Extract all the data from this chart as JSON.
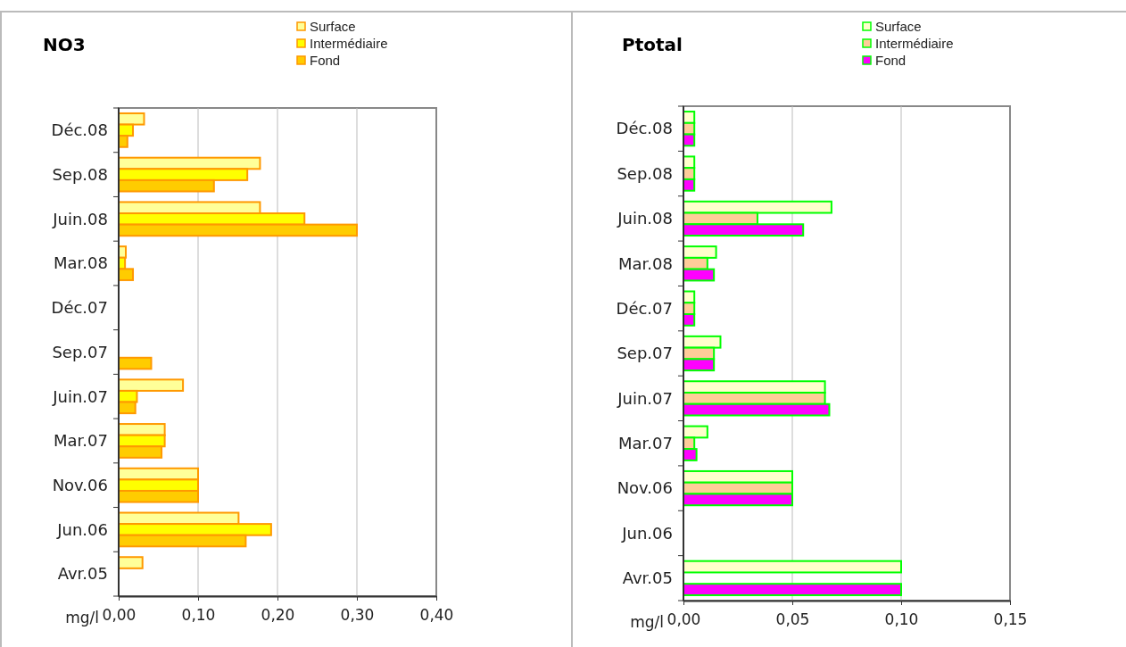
{
  "chart_data": [
    {
      "type": "bar",
      "orientation": "horizontal",
      "title": "NO3",
      "xlabel": "mg/l",
      "categories": [
        "Déc.08",
        "Sep.08",
        "Juin.08",
        "Mar.08",
        "Déc.07",
        "Sep.07",
        "Juin.07",
        "Mar.07",
        "Nov.06",
        "Jun.06",
        "Avr.05"
      ],
      "xlim": [
        0,
        0.4
      ],
      "xticks": [
        {
          "value": 0,
          "label": "0,00"
        },
        {
          "value": 0.1,
          "label": "0,10"
        },
        {
          "value": 0.2,
          "label": "0,20"
        },
        {
          "value": 0.3,
          "label": "0,30"
        },
        {
          "value": 0.4,
          "label": "0,40"
        }
      ],
      "grid": "x",
      "legend": "top",
      "series": [
        {
          "name": "Surface",
          "color": "#ffff99",
          "values": [
            0.032,
            0.178,
            0.178,
            0.009,
            null,
            null,
            0.081,
            0.058,
            0.1,
            0.151,
            0.03
          ]
        },
        {
          "name": "Intermédiaire",
          "color": "#ffff00",
          "values": [
            0.018,
            0.162,
            0.234,
            0.008,
            null,
            null,
            0.023,
            0.058,
            0.1,
            0.192,
            null
          ]
        },
        {
          "name": "Fond",
          "color": "#ffcc00",
          "values": [
            0.011,
            0.12,
            0.3,
            0.018,
            null,
            0.041,
            0.021,
            0.054,
            0.1,
            0.16,
            null
          ]
        }
      ]
    },
    {
      "type": "bar",
      "orientation": "horizontal",
      "title": "Ptotal",
      "xlabel": "mg/l",
      "categories": [
        "Déc.08",
        "Sep.08",
        "Juin.08",
        "Mar.08",
        "Déc.07",
        "Sep.07",
        "Juin.07",
        "Mar.07",
        "Nov.06",
        "Jun.06",
        "Avr.05"
      ],
      "xlim": [
        0,
        0.15
      ],
      "xticks": [
        {
          "value": 0,
          "label": "0,00"
        },
        {
          "value": 0.05,
          "label": "0,05"
        },
        {
          "value": 0.1,
          "label": "0,10"
        },
        {
          "value": 0.15,
          "label": "0,15"
        }
      ],
      "grid": "x",
      "legend": "top",
      "series": [
        {
          "name": "Surface",
          "color": "#ffffcc",
          "values": [
            0.005,
            0.005,
            0.068,
            0.015,
            0.005,
            0.017,
            0.065,
            0.011,
            0.05,
            null,
            0.1
          ]
        },
        {
          "name": "Intermédiaire",
          "color": "#ffcc99",
          "values": [
            0.005,
            0.005,
            0.034,
            0.011,
            0.005,
            0.014,
            0.065,
            0.005,
            0.05,
            null,
            null
          ]
        },
        {
          "name": "Fond",
          "color": "#ff00ff",
          "values": [
            0.005,
            0.005,
            0.055,
            0.014,
            0.005,
            0.014,
            0.067,
            0.006,
            0.05,
            null,
            0.1
          ]
        }
      ]
    }
  ]
}
